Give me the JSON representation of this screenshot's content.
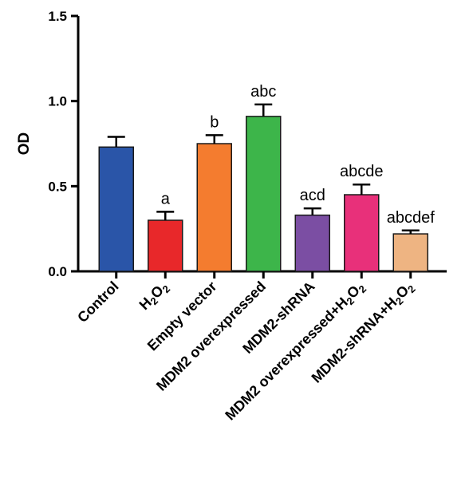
{
  "chart_data": {
    "type": "bar",
    "title": "",
    "xlabel": "",
    "ylabel": "OD",
    "ylim": [
      0,
      1.5
    ],
    "yticks": [
      "0.0",
      "0.5",
      "1.0",
      "1.5"
    ],
    "grid": false,
    "categories": [
      "Control",
      "H2O2",
      "Empty vector",
      "MDM2 overexpressed",
      "MDM2-shRNA",
      "MDM2 overexpressed+H2O2",
      "MDM2-shRNA+H2O2"
    ],
    "values": [
      0.73,
      0.3,
      0.75,
      0.91,
      0.33,
      0.45,
      0.22
    ],
    "errors": [
      0.06,
      0.05,
      0.05,
      0.07,
      0.04,
      0.06,
      0.02
    ],
    "significance": [
      "",
      "a",
      "b",
      "abc",
      "acd",
      "abcde",
      "abcdef"
    ],
    "colors": [
      "#2a55a8",
      "#e8282a",
      "#f47c2f",
      "#3db54a",
      "#7b4ea3",
      "#e8307a",
      "#eeb482"
    ]
  }
}
